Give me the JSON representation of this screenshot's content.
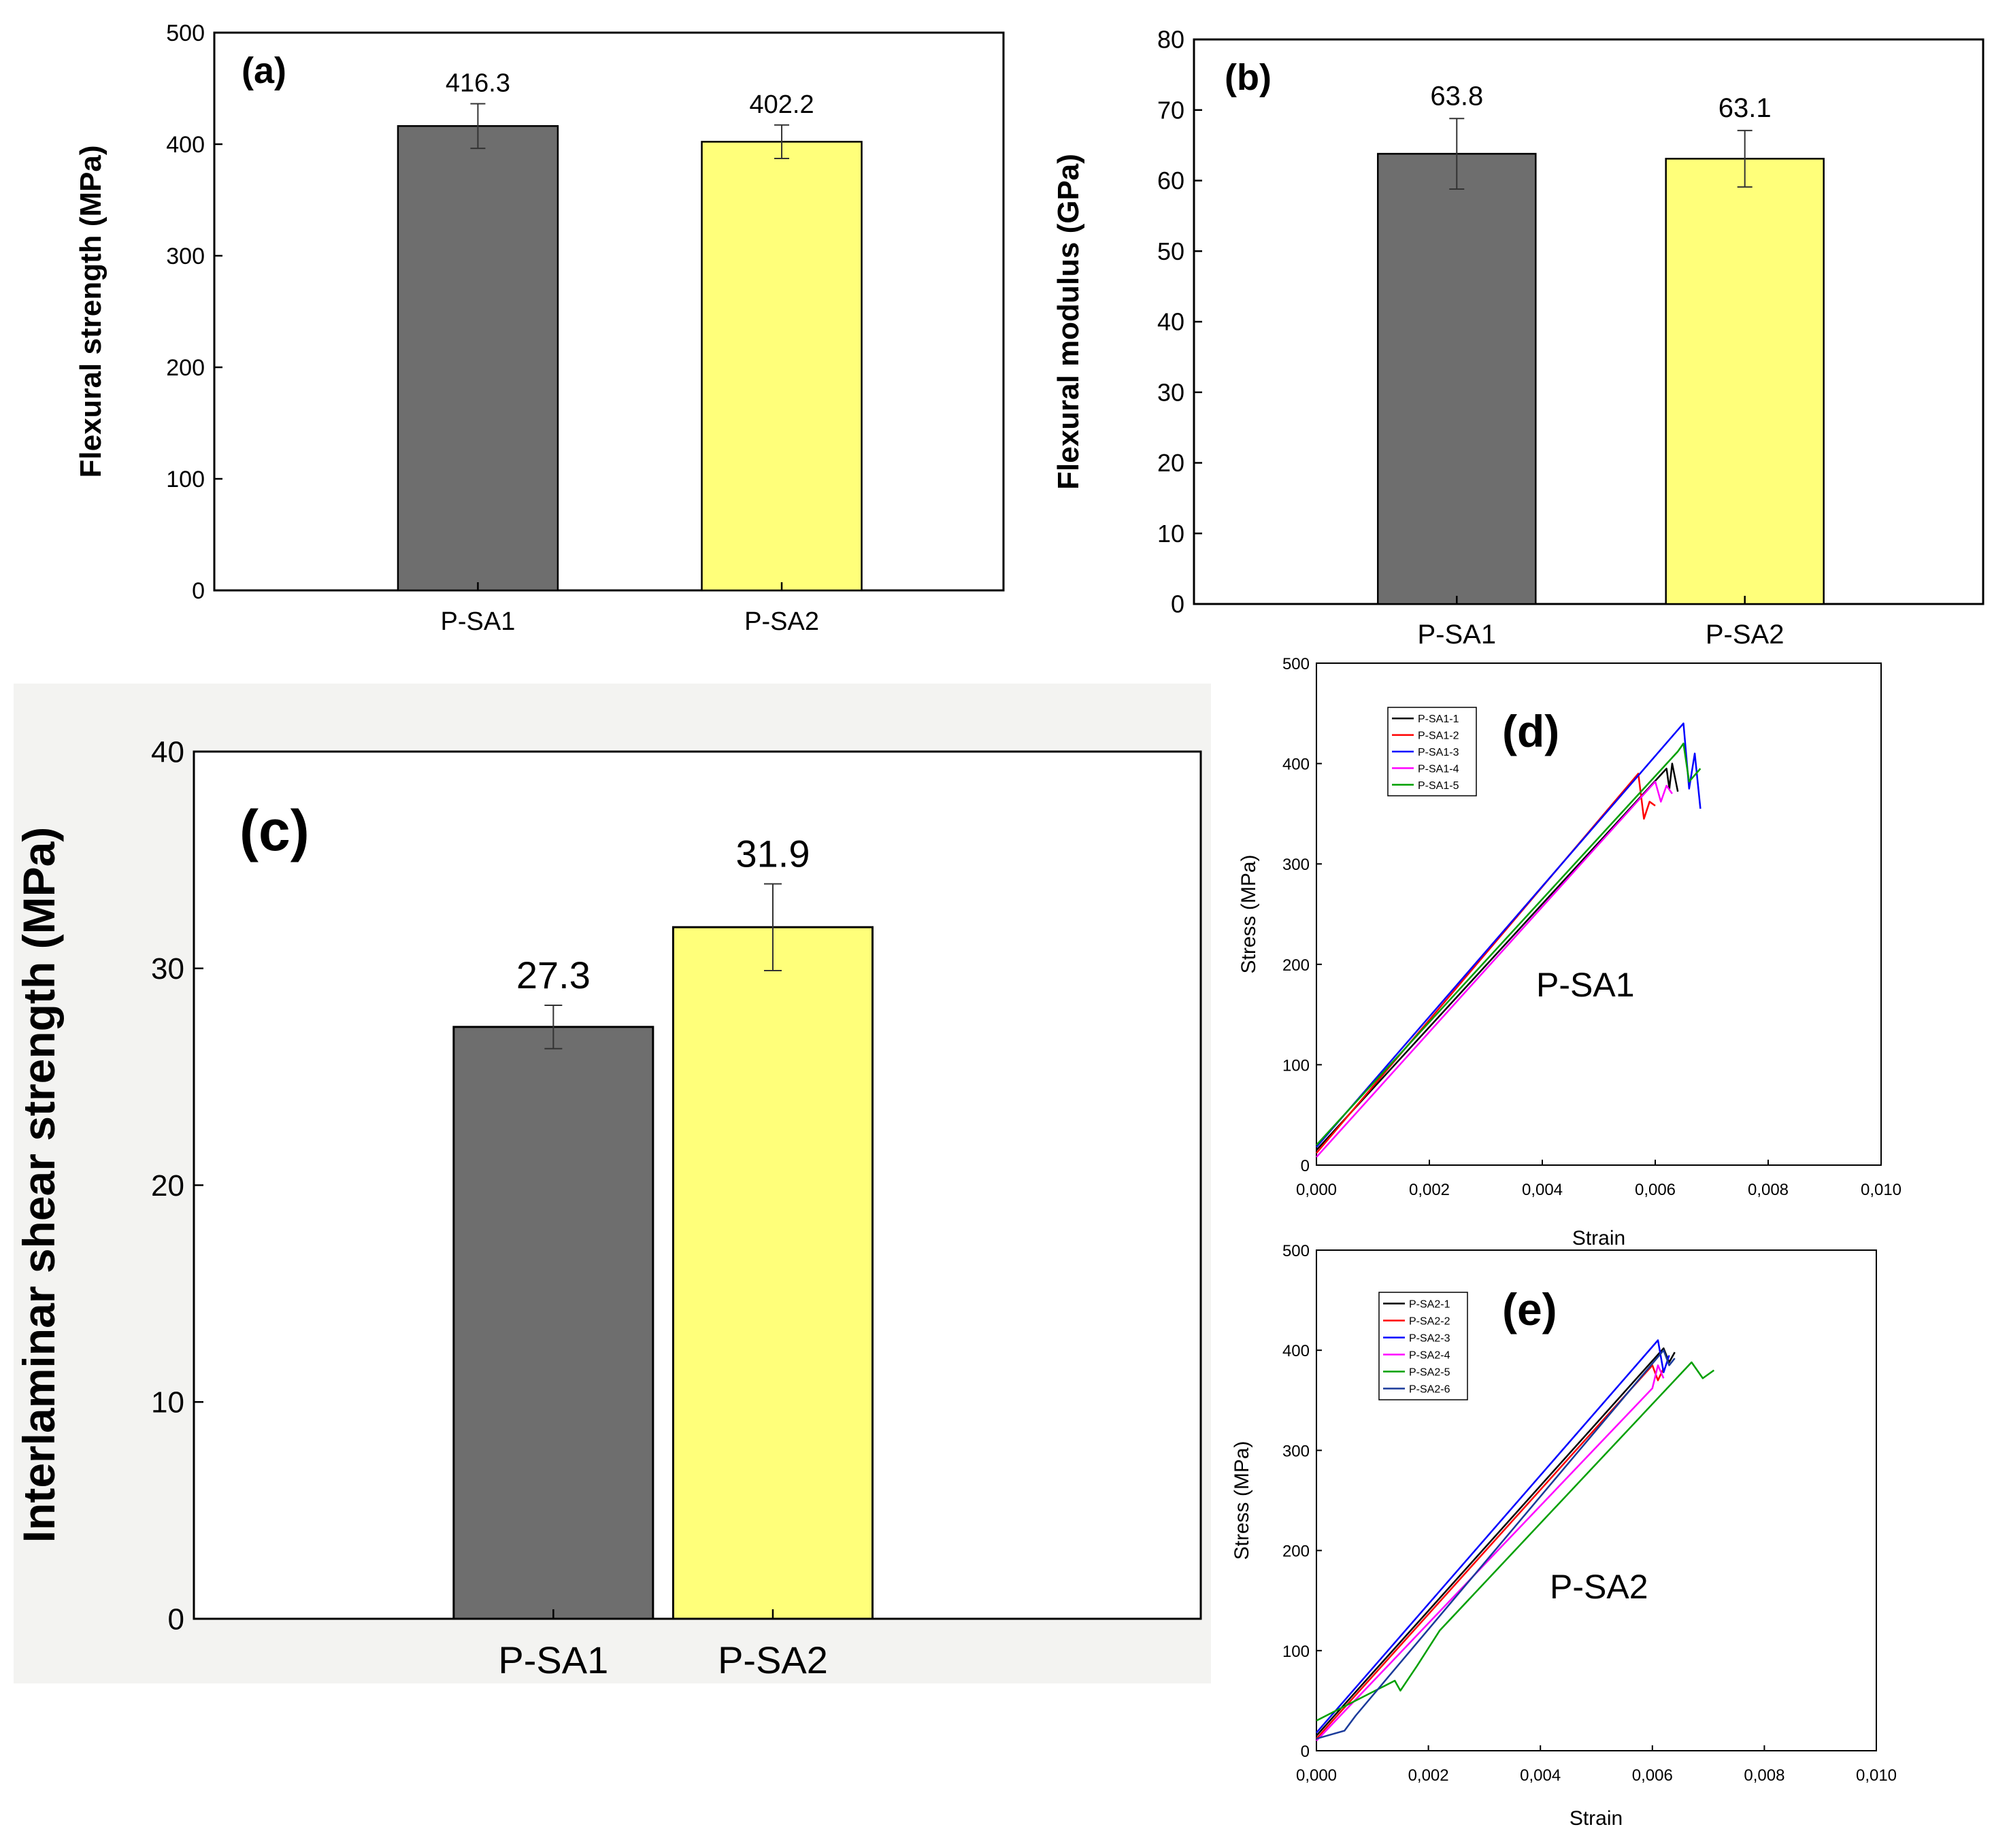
{
  "colors": {
    "gray_bar": "#6e6e6e",
    "yellow_bar": "#ffff7a",
    "axis": "#000000",
    "panel_bg_c": "#f3f3f1"
  },
  "chart_data": [
    {
      "id": "a",
      "type": "bar",
      "panel_label": "(a)",
      "categories": [
        "P-SA1",
        "P-SA2"
      ],
      "values": [
        416.3,
        402.2
      ],
      "errors": [
        20,
        15
      ],
      "value_labels": [
        "416.3",
        "402.2"
      ],
      "ylabel": "Flexural strength (MPa)",
      "xlabel": "",
      "ylim": [
        0,
        500
      ],
      "yticks": [
        "0",
        "100",
        "200",
        "300",
        "400",
        "500"
      ]
    },
    {
      "id": "b",
      "type": "bar",
      "panel_label": "(b)",
      "categories": [
        "P-SA1",
        "P-SA2"
      ],
      "values": [
        63.8,
        63.1
      ],
      "errors": [
        5,
        4
      ],
      "value_labels": [
        "63.8",
        "63.1"
      ],
      "ylabel": "Flexural modulus (GPa)",
      "xlabel": "",
      "ylim": [
        0,
        80
      ],
      "yticks": [
        "0",
        "10",
        "20",
        "30",
        "40",
        "50",
        "60",
        "70",
        "80"
      ]
    },
    {
      "id": "c",
      "type": "bar",
      "panel_label": "(c)",
      "categories": [
        "P-SA1",
        "P-SA2"
      ],
      "values": [
        27.3,
        31.9
      ],
      "errors": [
        1,
        2
      ],
      "value_labels": [
        "27.3",
        "31.9"
      ],
      "ylabel": "Interlaminar shear strength (MPa)",
      "xlabel": "",
      "ylim": [
        0,
        40
      ],
      "yticks": [
        "0",
        "10",
        "20",
        "30",
        "40"
      ]
    },
    {
      "id": "d",
      "type": "line",
      "panel_label": "(d)",
      "annotation": "P-SA1",
      "xlabel": "Strain",
      "ylabel": "Stress (MPa)",
      "xlim": [
        0,
        0.01
      ],
      "ylim": [
        0,
        500
      ],
      "xticks": [
        "0,000",
        "0,002",
        "0,004",
        "0,006",
        "0,008",
        "0,010"
      ],
      "yticks": [
        "0",
        "100",
        "200",
        "300",
        "400",
        "500"
      ],
      "series": [
        {
          "name": "P-SA1-1",
          "color": "#000000",
          "points": [
            [
              0.0,
              15
            ],
            [
              0.0062,
              395
            ],
            [
              0.00625,
              375
            ],
            [
              0.0063,
              400
            ],
            [
              0.0064,
              372
            ]
          ]
        },
        {
          "name": "P-SA1-2",
          "color": "#ff0000",
          "points": [
            [
              0.0,
              12
            ],
            [
              0.0057,
              390
            ],
            [
              0.0058,
              345
            ],
            [
              0.0059,
              362
            ],
            [
              0.006,
              358
            ]
          ]
        },
        {
          "name": "P-SA1-3",
          "color": "#0000ff",
          "points": [
            [
              0.0,
              18
            ],
            [
              0.0065,
              440
            ],
            [
              0.0066,
              375
            ],
            [
              0.0067,
              410
            ],
            [
              0.0068,
              355
            ]
          ]
        },
        {
          "name": "P-SA1-4",
          "color": "#ff00ff",
          "points": [
            [
              0.0,
              8
            ],
            [
              0.006,
              382
            ],
            [
              0.0061,
              362
            ],
            [
              0.0062,
              378
            ],
            [
              0.0063,
              370
            ]
          ]
        },
        {
          "name": "P-SA1-5",
          "color": "#00a000",
          "points": [
            [
              0.0,
              20
            ],
            [
              0.0064,
              412
            ],
            [
              0.0065,
              420
            ],
            [
              0.0066,
              382
            ],
            [
              0.0068,
              395
            ]
          ]
        }
      ]
    },
    {
      "id": "e",
      "type": "line",
      "panel_label": "(e)",
      "annotation": "P-SA2",
      "xlabel": "Strain",
      "ylabel": "Stress (MPa)",
      "xlim": [
        0,
        0.01
      ],
      "ylim": [
        0,
        500
      ],
      "xticks": [
        "0,000",
        "0,002",
        "0,004",
        "0,006",
        "0,008",
        "0,010"
      ],
      "yticks": [
        "0",
        "100",
        "200",
        "300",
        "400",
        "500"
      ],
      "series": [
        {
          "name": "P-SA2-1",
          "color": "#000000",
          "points": [
            [
              0.0,
              15
            ],
            [
              0.0062,
              402
            ],
            [
              0.0063,
              388
            ],
            [
              0.0064,
              398
            ]
          ]
        },
        {
          "name": "P-SA2-2",
          "color": "#ff0000",
          "points": [
            [
              0.0,
              12
            ],
            [
              0.006,
              385
            ],
            [
              0.0061,
              370
            ],
            [
              0.0062,
              382
            ]
          ]
        },
        {
          "name": "P-SA2-3",
          "color": "#0000ff",
          "points": [
            [
              0.0,
              18
            ],
            [
              0.0061,
              410
            ],
            [
              0.0062,
              378
            ],
            [
              0.0063,
              395
            ]
          ]
        },
        {
          "name": "P-SA2-4",
          "color": "#ff00ff",
          "points": [
            [
              0.0,
              10
            ],
            [
              0.006,
              362
            ],
            [
              0.0061,
              385
            ],
            [
              0.0062,
              372
            ]
          ]
        },
        {
          "name": "P-SA2-5",
          "color": "#00a000",
          "points": [
            [
              0.0,
              30
            ],
            [
              0.0014,
              70
            ],
            [
              0.0015,
              60
            ],
            [
              0.0018,
              85
            ],
            [
              0.0022,
              120
            ],
            [
              0.0067,
              388
            ],
            [
              0.0069,
              372
            ],
            [
              0.0071,
              380
            ]
          ]
        },
        {
          "name": "P-SA2-6",
          "color": "#1a3a9a",
          "points": [
            [
              0.0,
              12
            ],
            [
              0.0005,
              20
            ],
            [
              0.0007,
              35
            ],
            [
              0.0062,
              400
            ],
            [
              0.0063,
              385
            ],
            [
              0.0064,
              392
            ]
          ]
        }
      ]
    }
  ]
}
